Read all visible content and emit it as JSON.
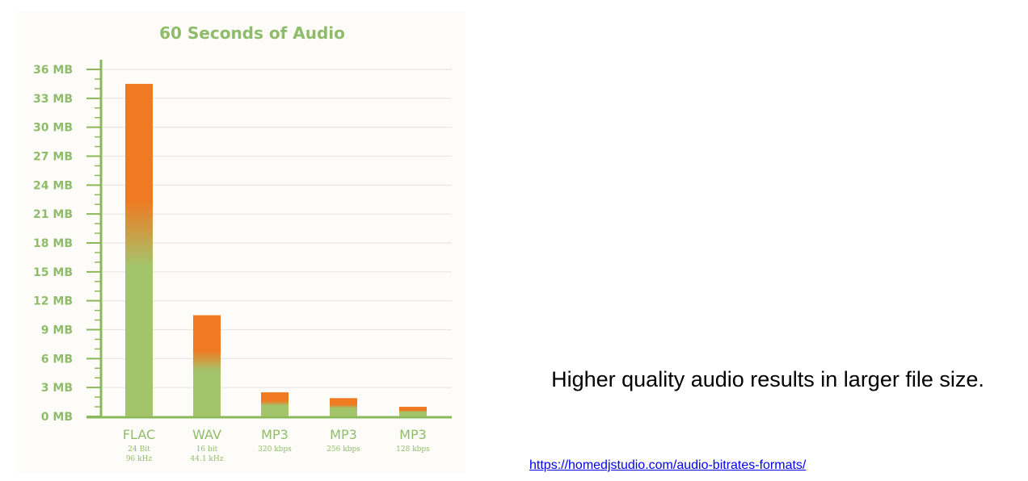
{
  "chart_data": {
    "type": "bar",
    "title": "60 Seconds of Audio",
    "categories": [
      "FLAC",
      "WAV",
      "MP3",
      "MP3",
      "MP3"
    ],
    "sublabels": [
      [
        "24 Bit",
        "96 kHz"
      ],
      [
        "16 bit",
        "44.1 kHz"
      ],
      [
        "320 kbps"
      ],
      [
        "256 kbps"
      ],
      [
        "128 kbps"
      ]
    ],
    "values": [
      34.5,
      10.5,
      2.5,
      1.9,
      1.0
    ],
    "ylim": [
      0,
      36
    ],
    "yticks": [
      0,
      3,
      6,
      9,
      12,
      15,
      18,
      21,
      24,
      27,
      30,
      33,
      36
    ],
    "ytick_labels": [
      "0 MB",
      "3 MB",
      "6 MB",
      "9 MB",
      "12 MB",
      "15 MB",
      "18 MB",
      "21 MB",
      "24 MB",
      "27 MB",
      "30 MB",
      "33 MB",
      "36 MB"
    ],
    "grid": true,
    "colors": {
      "bar_top": "#f07a22",
      "bar_bottom": "#a4c46c",
      "axis": "#8cb85c",
      "text": "#8fbc6a",
      "grid": "#e6e6e6"
    }
  },
  "caption": "Higher quality audio results in larger file size.",
  "source_link": "https://homedjstudio.com/audio-bitrates-formats/"
}
